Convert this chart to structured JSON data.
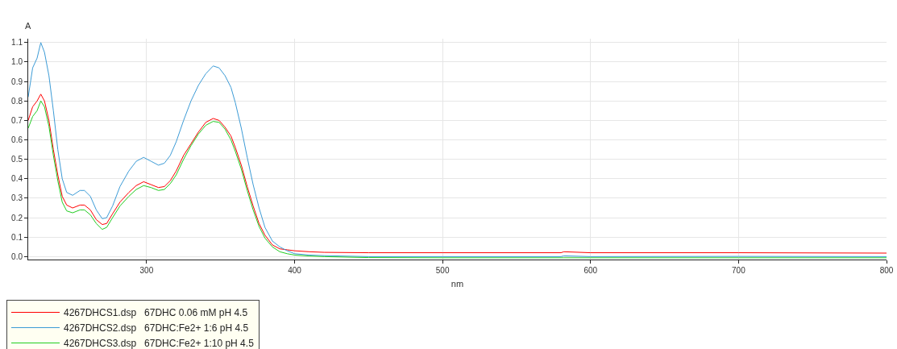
{
  "chart_data": {
    "type": "line",
    "xlabel": "nm",
    "ylabel": "A",
    "xlim": [
      220,
      800
    ],
    "ylim": [
      -0.015,
      1.12
    ],
    "xticks": [
      300,
      400,
      500,
      600,
      700,
      800
    ],
    "yticks": [
      {
        "value": 0,
        "label": "0.0"
      },
      {
        "value": 0.1,
        "label": "0.1"
      },
      {
        "value": 0.2,
        "label": "0.2"
      },
      {
        "value": 0.3,
        "label": "0.3"
      },
      {
        "value": 0.4,
        "label": "0.4"
      },
      {
        "value": 0.5,
        "label": "0.5"
      },
      {
        "value": 0.6,
        "label": "0.6"
      },
      {
        "value": 0.7,
        "label": "0.7"
      },
      {
        "value": 0.8,
        "label": "0.8"
      },
      {
        "value": 0.9,
        "label": "0.9"
      },
      {
        "value": 1.0,
        "label": "1.0"
      },
      {
        "value": 1.1,
        "label": "1.1"
      }
    ],
    "grid": true,
    "legend": "bottom left",
    "marker": "none",
    "line_style": "solid",
    "x": [
      220,
      223,
      226,
      228.5,
      231,
      234,
      237,
      240,
      243,
      246,
      250,
      255,
      258,
      262,
      266,
      270,
      273,
      277,
      282,
      288,
      293,
      298,
      303,
      308,
      312,
      316,
      320,
      325,
      330,
      335,
      340,
      345,
      349,
      353,
      357,
      360,
      364,
      368,
      372,
      376,
      380,
      385,
      390,
      395,
      400,
      410,
      420,
      450,
      500,
      580,
      582,
      600,
      700,
      800
    ],
    "series": [
      {
        "name": "4267DHCS1.dsp   67DHC 0.06 mM pH 4.5",
        "color": "#ff0000",
        "values": [
          0.7,
          0.77,
          0.8,
          0.835,
          0.8,
          0.7,
          0.55,
          0.42,
          0.31,
          0.265,
          0.25,
          0.265,
          0.265,
          0.24,
          0.19,
          0.165,
          0.17,
          0.22,
          0.28,
          0.33,
          0.365,
          0.385,
          0.37,
          0.355,
          0.36,
          0.39,
          0.44,
          0.52,
          0.58,
          0.64,
          0.69,
          0.71,
          0.7,
          0.665,
          0.62,
          0.56,
          0.47,
          0.36,
          0.26,
          0.17,
          0.11,
          0.06,
          0.04,
          0.035,
          0.03,
          0.025,
          0.022,
          0.02,
          0.02,
          0.02,
          0.025,
          0.02,
          0.02,
          0.018
        ]
      },
      {
        "name": "4267DHCS2.dsp   67DHC:Fe2+ 1:6 pH 4.5",
        "color": "#3c9bd6",
        "values": [
          0.82,
          0.97,
          1.02,
          1.1,
          1.05,
          0.93,
          0.75,
          0.55,
          0.4,
          0.33,
          0.315,
          0.34,
          0.34,
          0.31,
          0.24,
          0.195,
          0.2,
          0.26,
          0.36,
          0.44,
          0.49,
          0.51,
          0.49,
          0.47,
          0.48,
          0.52,
          0.59,
          0.7,
          0.8,
          0.88,
          0.94,
          0.98,
          0.97,
          0.93,
          0.87,
          0.79,
          0.66,
          0.51,
          0.37,
          0.25,
          0.15,
          0.08,
          0.05,
          0.03,
          0.015,
          0.008,
          0.005,
          0.0,
          0.0,
          0.0,
          0.004,
          0.0,
          0.001,
          0.0
        ]
      },
      {
        "name": "4267DHCS3.dsp   67DHC:Fe2+ 1:10 pH 4.5",
        "color": "#22cc22",
        "values": [
          0.66,
          0.72,
          0.75,
          0.8,
          0.77,
          0.67,
          0.52,
          0.39,
          0.28,
          0.235,
          0.225,
          0.24,
          0.24,
          0.215,
          0.17,
          0.14,
          0.15,
          0.2,
          0.26,
          0.31,
          0.345,
          0.365,
          0.355,
          0.34,
          0.345,
          0.375,
          0.42,
          0.5,
          0.57,
          0.63,
          0.675,
          0.695,
          0.69,
          0.655,
          0.6,
          0.54,
          0.45,
          0.34,
          0.24,
          0.155,
          0.095,
          0.05,
          0.025,
          0.015,
          0.008,
          0.003,
          0.0,
          -0.005,
          -0.006,
          -0.006,
          -0.006,
          -0.006,
          -0.006,
          -0.006
        ]
      }
    ]
  }
}
